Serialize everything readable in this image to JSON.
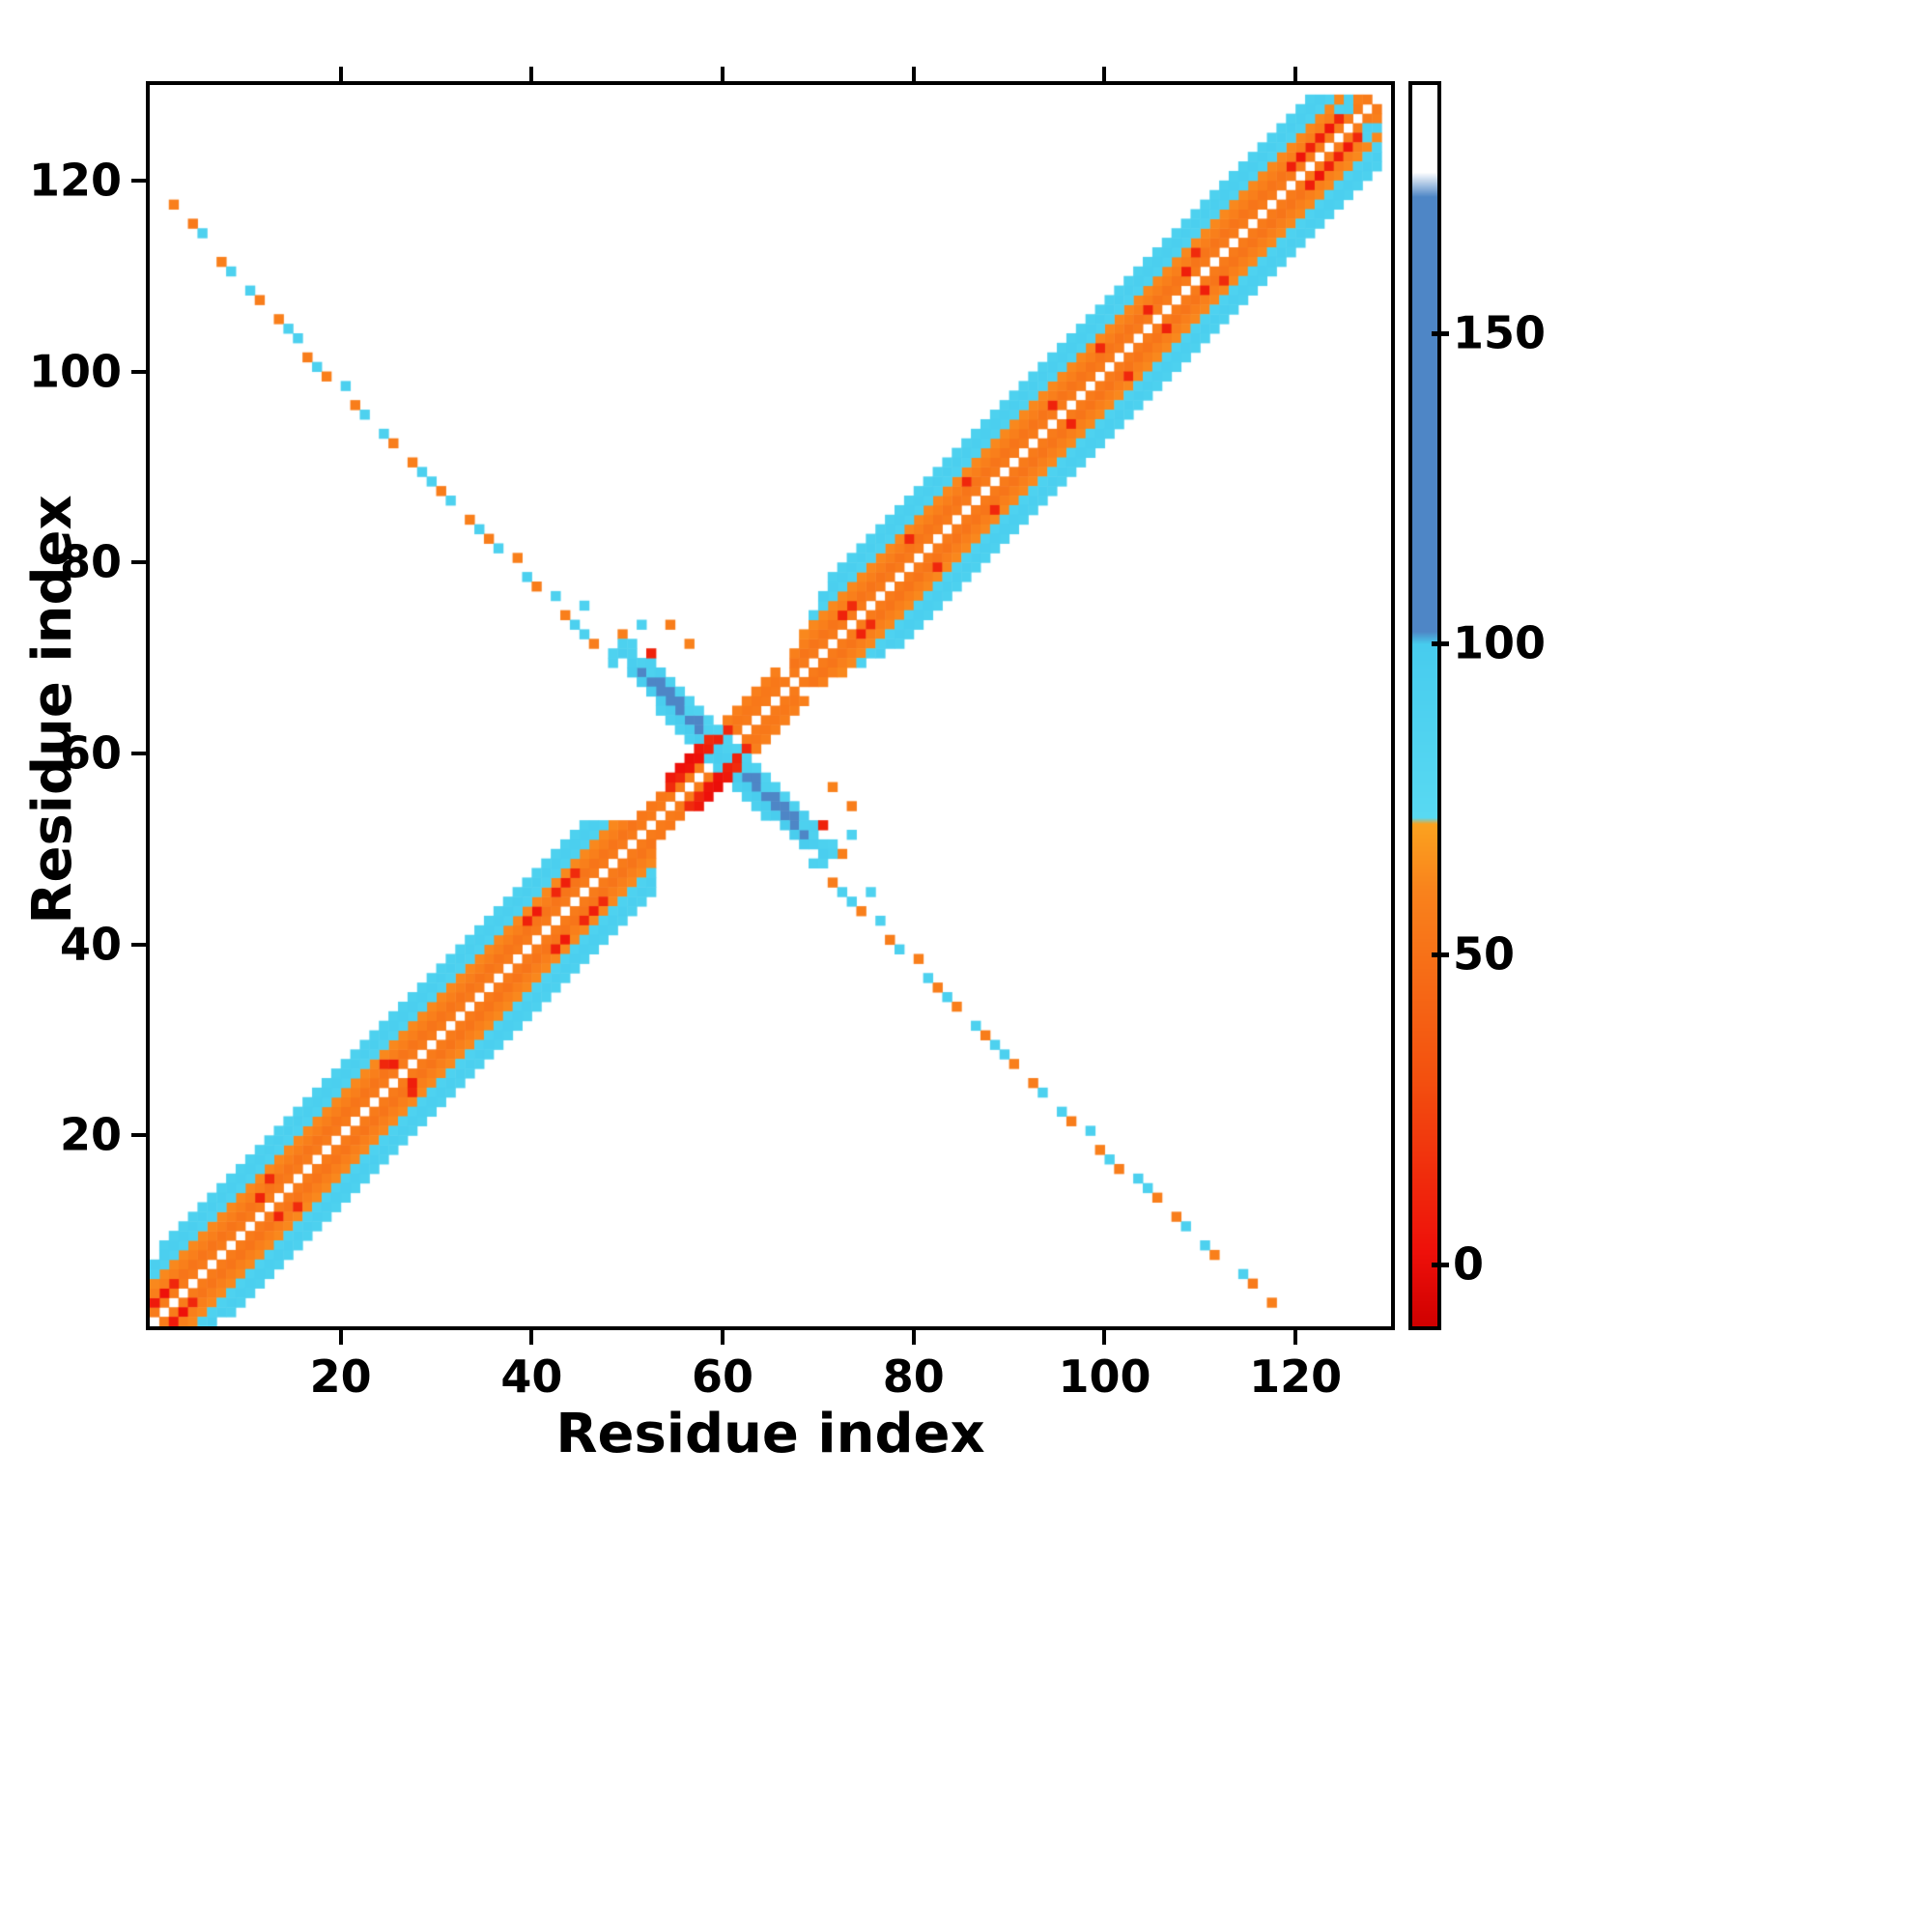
{
  "chart_data": {
    "type": "heatmap",
    "title": "",
    "xlabel": "Residue index",
    "ylabel": "Residue index",
    "x_ticks": [
      20,
      40,
      60,
      80,
      100,
      120
    ],
    "y_ticks": [
      20,
      40,
      60,
      80,
      100,
      120
    ],
    "x_range": [
      0,
      130
    ],
    "y_range": [
      0,
      130
    ],
    "grid": false,
    "symmetric": true,
    "background": "#ffffff",
    "colorbar": {
      "position": "right",
      "ticks": [
        0,
        50,
        100,
        150
      ],
      "vmin": -10,
      "vmax": 190,
      "stops": [
        [
          -10,
          "#cf0000"
        ],
        [
          2,
          "#ee100a"
        ],
        [
          30,
          "#f3500f"
        ],
        [
          60,
          "#f9821c"
        ],
        [
          71,
          "#fba21f"
        ],
        [
          72,
          "#58d9f2"
        ],
        [
          100,
          "#47ccee"
        ],
        [
          102,
          "#4e86c6"
        ],
        [
          172,
          "#4e86c6"
        ],
        [
          176,
          "#ffffff"
        ],
        [
          190,
          "#ffffff"
        ]
      ]
    },
    "diagonal_bands": [
      [
        1,
        52,
        1,
        56
      ],
      [
        1,
        51,
        2,
        52
      ],
      [
        1,
        50,
        3,
        58
      ],
      [
        1,
        49,
        4,
        62
      ],
      [
        1,
        48,
        5,
        88
      ],
      [
        1,
        47,
        6,
        93
      ],
      [
        2,
        46,
        7,
        90
      ],
      [
        53,
        67,
        1,
        56
      ],
      [
        52,
        66,
        2,
        54
      ],
      [
        60,
        66,
        3,
        58
      ],
      [
        68,
        128,
        1,
        56
      ],
      [
        68,
        127,
        2,
        52
      ],
      [
        68,
        126,
        3,
        58
      ],
      [
        69,
        125,
        4,
        62
      ],
      [
        70,
        124,
        5,
        88
      ],
      [
        71,
        123,
        6,
        93
      ],
      [
        72,
        122,
        7,
        90
      ]
    ],
    "anti_diagonal_bands": [
      [
        121,
        50,
        71,
        95
      ],
      [
        122,
        51,
        70,
        90
      ],
      [
        120,
        53,
        69,
        97
      ],
      [
        123,
        53,
        66,
        87
      ],
      [
        119,
        57,
        65,
        92
      ]
    ],
    "cells": [
      [
        3,
        118,
        58
      ],
      [
        5,
        116,
        55
      ],
      [
        6,
        115,
        90
      ],
      [
        8,
        112,
        58
      ],
      [
        9,
        111,
        90
      ],
      [
        11,
        109,
        92
      ],
      [
        12,
        108,
        57
      ],
      [
        14,
        106,
        58
      ],
      [
        15,
        105,
        90
      ],
      [
        16,
        104,
        92
      ],
      [
        17,
        102,
        57
      ],
      [
        18,
        101,
        90
      ],
      [
        19,
        100,
        58
      ],
      [
        21,
        99,
        92
      ],
      [
        22,
        97,
        57
      ],
      [
        23,
        96,
        90
      ],
      [
        25,
        94,
        90
      ],
      [
        26,
        93,
        57
      ],
      [
        28,
        91,
        58
      ],
      [
        29,
        90,
        92
      ],
      [
        30,
        89,
        90
      ],
      [
        31,
        88,
        57
      ],
      [
        32,
        87,
        90
      ],
      [
        34,
        85,
        58
      ],
      [
        35,
        84,
        92
      ],
      [
        36,
        83,
        57
      ],
      [
        37,
        82,
        90
      ],
      [
        39,
        81,
        58
      ],
      [
        40,
        79,
        92
      ],
      [
        41,
        78,
        57
      ],
      [
        43,
        77,
        90
      ],
      [
        44,
        75,
        58
      ],
      [
        45,
        74,
        92
      ],
      [
        46,
        73,
        90
      ],
      [
        47,
        72,
        57
      ],
      [
        49,
        70,
        90
      ],
      [
        50,
        73,
        58
      ],
      [
        46,
        76,
        88
      ],
      [
        55,
        74,
        57
      ],
      [
        57,
        72,
        60
      ],
      [
        52,
        74,
        88
      ],
      [
        51,
        71,
        90
      ],
      [
        51,
        72,
        88
      ],
      [
        53,
        70,
        92
      ],
      [
        54,
        69,
        95
      ],
      [
        55,
        68,
        90
      ],
      [
        49,
        71,
        88
      ],
      [
        50,
        72,
        90
      ],
      [
        52,
        69,
        133
      ],
      [
        53,
        68,
        150
      ],
      [
        54,
        67,
        140
      ],
      [
        55,
        66,
        150
      ],
      [
        56,
        65,
        155
      ],
      [
        57,
        64,
        145
      ],
      [
        58,
        63,
        152
      ],
      [
        56,
        66,
        130
      ],
      [
        58,
        64,
        135
      ],
      [
        54,
        68,
        128
      ],
      [
        55,
        67,
        142
      ],
      [
        126,
        128,
        90
      ],
      [
        125,
        128,
        88
      ],
      [
        127,
        129,
        58
      ],
      [
        126,
        129,
        90
      ],
      [
        12,
        14,
        10
      ],
      [
        13,
        16,
        14
      ],
      [
        25,
        28,
        12
      ],
      [
        26,
        28,
        8
      ],
      [
        40,
        43,
        10
      ],
      [
        41,
        44,
        6
      ],
      [
        43,
        46,
        12
      ],
      [
        44,
        47,
        8
      ],
      [
        45,
        48,
        14
      ],
      [
        1,
        3,
        6
      ],
      [
        2,
        4,
        2
      ],
      [
        3,
        5,
        12
      ],
      [
        73,
        75,
        10
      ],
      [
        74,
        76,
        14
      ],
      [
        80,
        83,
        12
      ],
      [
        86,
        89,
        12
      ],
      [
        95,
        97,
        10
      ],
      [
        100,
        103,
        12
      ],
      [
        105,
        107,
        10
      ],
      [
        109,
        111,
        8
      ],
      [
        110,
        113,
        14
      ],
      [
        120,
        122,
        8
      ],
      [
        121,
        123,
        4
      ],
      [
        122,
        124,
        10
      ],
      [
        123,
        125,
        9
      ],
      [
        124,
        126,
        5
      ],
      [
        125,
        127,
        12
      ],
      [
        53,
        71,
        10
      ],
      [
        55,
        57,
        14
      ],
      [
        55,
        58,
        6
      ],
      [
        56,
        58,
        12
      ],
      [
        56,
        59,
        2
      ],
      [
        57,
        59,
        4
      ],
      [
        57,
        60,
        1
      ],
      [
        58,
        60,
        2
      ],
      [
        58,
        61,
        6
      ],
      [
        59,
        61,
        9
      ],
      [
        59,
        62,
        14
      ],
      [
        60,
        62,
        10
      ],
      [
        61,
        63,
        12
      ]
    ]
  }
}
